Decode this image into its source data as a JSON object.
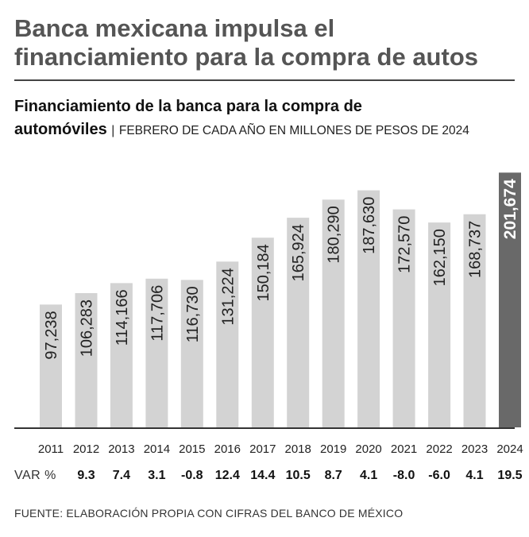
{
  "headline": {
    "line1": "Banca mexicana impulsa el",
    "line2": "financiamiento para la compra de autos"
  },
  "chart_data": {
    "type": "bar",
    "title_line1": "Financiamiento de la banca para la compra de",
    "title_line2": "automóviles",
    "separator": "|",
    "units": "FEBRERO DE CADA AÑO EN MILLONES DE PESOS DE 2024",
    "categories": [
      "2011",
      "2012",
      "2013",
      "2014",
      "2015",
      "2016",
      "2017",
      "2018",
      "2019",
      "2020",
      "2021",
      "2022",
      "2023",
      "2024"
    ],
    "values": [
      97238,
      106283,
      114166,
      117706,
      116730,
      131224,
      150184,
      165924,
      180290,
      187630,
      172570,
      162150,
      168737,
      201674
    ],
    "value_labels": [
      "97,238",
      "106,283",
      "114,166",
      "117,706",
      "116,730",
      "131,224",
      "150,184",
      "165,924",
      "180,290",
      "187,630",
      "172,570",
      "162,150",
      "168,737",
      "201,674"
    ],
    "ylim": [
      0,
      205000
    ],
    "colors": {
      "bar": "#d3d3d3",
      "highlight": "#696969",
      "axis": "#333333"
    },
    "highlight_index": 13,
    "var_label": "VAR %",
    "var_values": [
      "9.3",
      "7.4",
      "3.1",
      "-0.8",
      "12.4",
      "14.4",
      "10.5",
      "8.7",
      "4.1",
      "-8.0",
      "-6.0",
      "4.1",
      "19.5"
    ],
    "grid": false
  },
  "source": "FUENTE: ELABORACIÓN PROPIA CON CIFRAS DEL BANCO DE MÉXICO"
}
